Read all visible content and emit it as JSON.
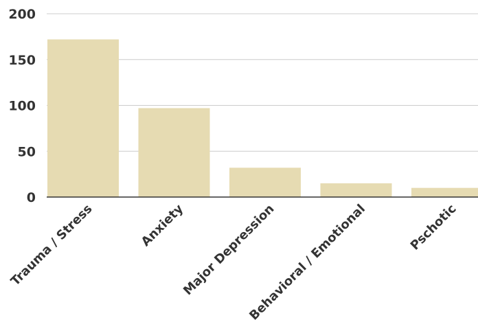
{
  "chart_data": {
    "type": "bar",
    "title": "",
    "xlabel": "",
    "ylabel": "",
    "categories": [
      "Trauma / Stress",
      "Anxiety",
      "Major Depression",
      "Behavioral / Emotional",
      "Pschotic"
    ],
    "values": [
      172,
      97,
      32,
      15,
      10
    ],
    "ylim": [
      0,
      200
    ],
    "yticks": [
      "0",
      "50",
      "100",
      "150",
      "200"
    ],
    "grid": true,
    "legend": "none",
    "colors": {
      "bar": "#e6dbb2",
      "grid": "#cccccc",
      "axis": "#333333",
      "text": "#333333"
    }
  }
}
